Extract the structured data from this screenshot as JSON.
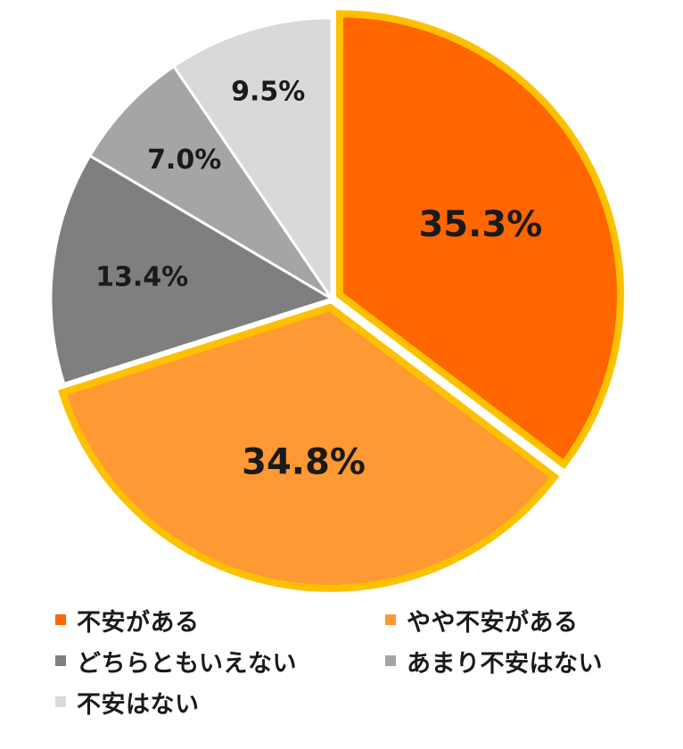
{
  "chart_data": {
    "type": "pie",
    "slices": [
      {
        "label": "不安がある",
        "value": 35.3,
        "value_label": "35.3%",
        "color": "#FF6600",
        "exploded": true
      },
      {
        "label": "やや不安がある",
        "value": 34.8,
        "value_label": "34.8%",
        "color": "#FF9933",
        "exploded": true
      },
      {
        "label": "どちらともいえない",
        "value": 13.4,
        "value_label": "13.4%",
        "color": "#7F7F7F",
        "exploded": false
      },
      {
        "label": "あまり不安はない",
        "value": 7.0,
        "value_label": "7.0%",
        "color": "#A5A5A5",
        "exploded": false
      },
      {
        "label": "不安はない",
        "value": 9.5,
        "value_label": "9.5%",
        "color": "#D9D9D9",
        "exploded": false
      }
    ],
    "highlight_outline_color": "#FFC000",
    "start_angle": "12 o'clock",
    "direction": "clockwise",
    "legend_position": "bottom"
  }
}
